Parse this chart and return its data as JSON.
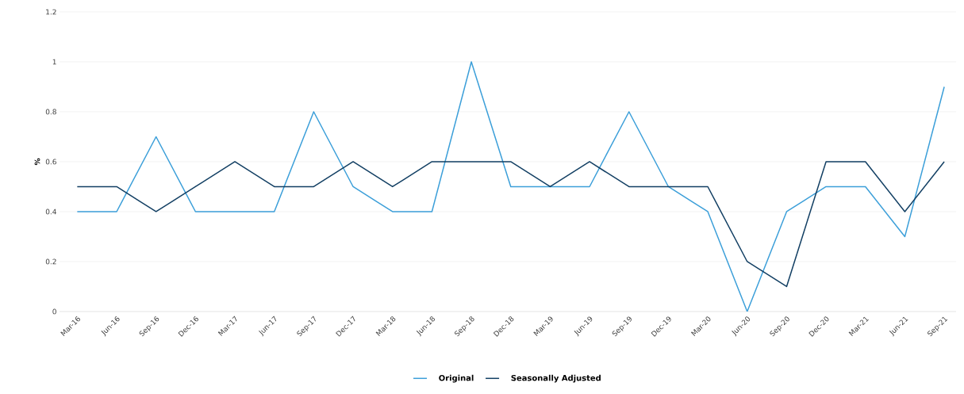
{
  "chart_data": {
    "type": "line",
    "ylabel": "%",
    "categories": [
      "Mar-16",
      "Jun-16",
      "Sep-16",
      "Dec-16",
      "Mar-17",
      "Jun-17",
      "Sep-17",
      "Dec-17",
      "Mar-18",
      "Jun-18",
      "Sep-18",
      "Dec-18",
      "Mar-19",
      "Jun-19",
      "Sep-19",
      "Dec-19",
      "Mar-20",
      "Jun-20",
      "Sep-20",
      "Dec-20",
      "Mar-21",
      "Jun-21",
      "Sep-21"
    ],
    "series": [
      {
        "name": "Original",
        "color": "#3c9fd9",
        "values": [
          0.4,
          0.4,
          0.7,
          0.4,
          0.4,
          0.4,
          0.8,
          0.5,
          0.4,
          0.4,
          1.0,
          0.5,
          0.5,
          0.5,
          0.8,
          0.5,
          0.4,
          0,
          0.4,
          0.5,
          0.5,
          0.3,
          0.9
        ]
      },
      {
        "name": "Seasonally Adjusted",
        "color": "#123f63",
        "values": [
          0.5,
          0.5,
          0.4,
          0.5,
          0.6,
          0.5,
          0.5,
          0.6,
          0.5,
          0.6,
          0.6,
          0.6,
          0.5,
          0.6,
          0.5,
          0.5,
          0.5,
          0.2,
          0.1,
          0.6,
          0.6,
          0.4,
          0.6
        ]
      }
    ],
    "ylim": [
      0,
      1.2
    ],
    "yticks": [
      0,
      0.2,
      0.4,
      0.6,
      0.8,
      1,
      1.2
    ],
    "grid": "y",
    "legend": "bottom",
    "line_style": "solid",
    "marker": "none"
  }
}
